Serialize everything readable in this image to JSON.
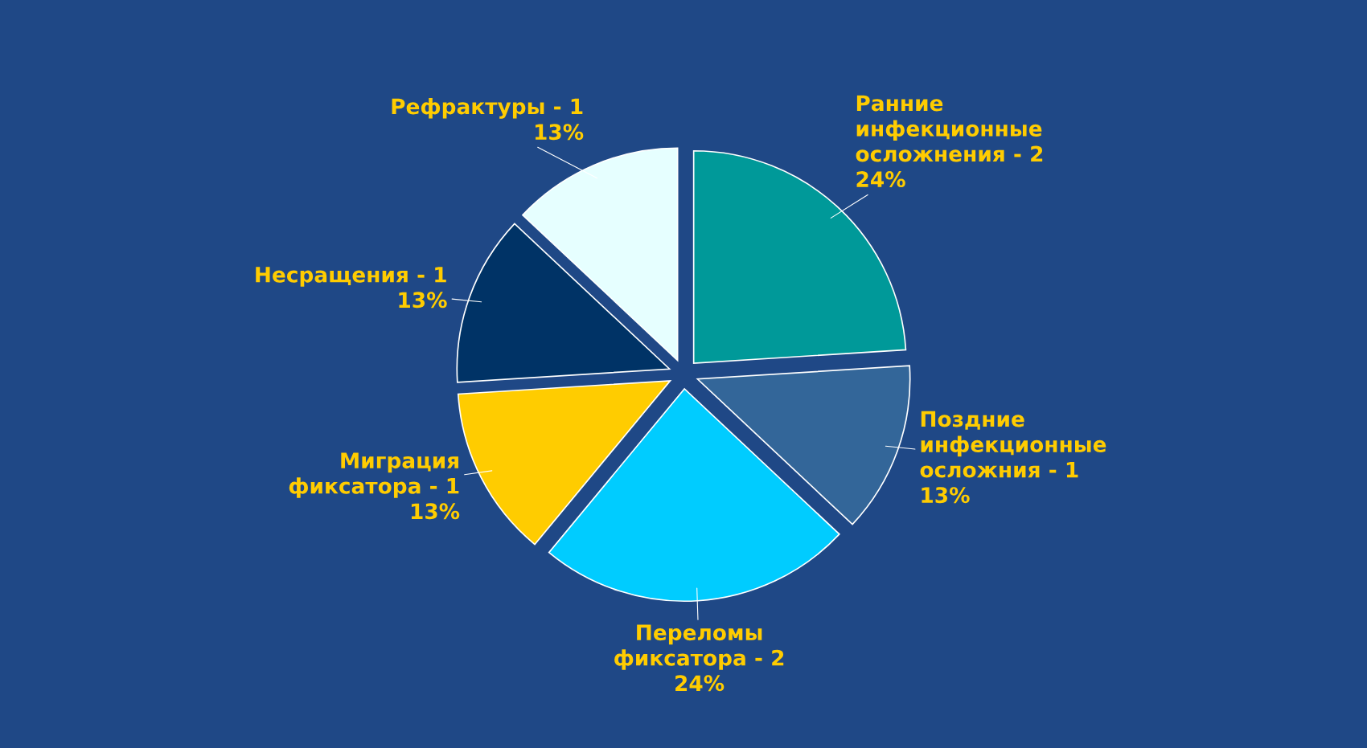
{
  "chart_data": {
    "type": "pie",
    "categories": [
      "Ранние\nинфекционные\nосложнения - 2",
      "Поздние\nинфекционные\nосложния - 1",
      "Переломы\nфиксатора - 2",
      "Миграция\nфиксатора - 1",
      "Несращения - 1",
      "Рефрактуры - 1"
    ],
    "values": [
      24,
      13,
      24,
      13,
      13,
      13
    ],
    "value_labels": [
      "24%",
      "13%",
      "24%",
      "13%",
      "13%",
      "13%"
    ],
    "colors": [
      "#009999",
      "#336699",
      "#00ccff",
      "#ffcc00",
      "#003366",
      "#e6ffff"
    ]
  }
}
